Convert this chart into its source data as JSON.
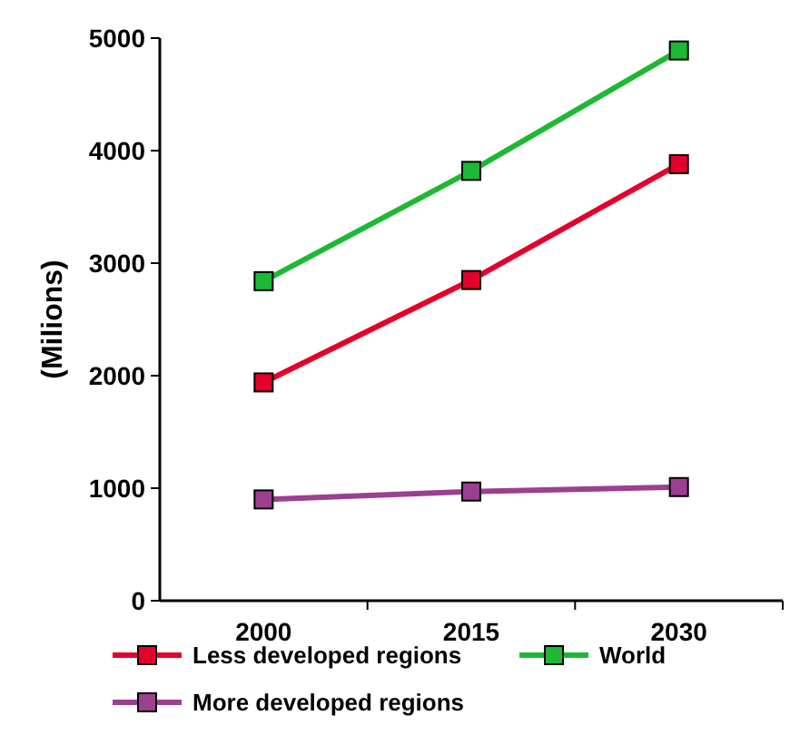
{
  "chart_data": {
    "type": "line",
    "ylabel": "(Milions)",
    "categories": [
      "2000",
      "2015",
      "2030"
    ],
    "ylim": [
      0,
      5000
    ],
    "yticks": [
      0,
      1000,
      2000,
      3000,
      4000,
      5000
    ],
    "grid": false,
    "legend": "bottom",
    "marker": "square",
    "line_style": "solid",
    "series": [
      {
        "name": "Less developed regions",
        "color": "#e4002b",
        "values": [
          1940,
          2850,
          3880
        ]
      },
      {
        "name": "World",
        "color": "#1db934",
        "values": [
          2840,
          3820,
          4890
        ]
      },
      {
        "name": "More developed regions",
        "color": "#9c3f8f",
        "values": [
          900,
          970,
          1010
        ]
      }
    ]
  }
}
